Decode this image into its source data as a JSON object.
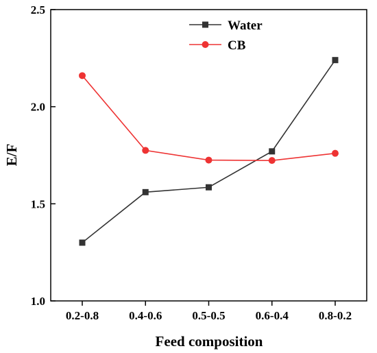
{
  "chart_data": {
    "type": "line",
    "xlabel": "Feed composition",
    "ylabel": "E/F",
    "categories": [
      "0.2-0.8",
      "0.4-0.6",
      "0.5-0.5",
      "0.6-0.4",
      "0.8-0.2"
    ],
    "ylim": [
      1.0,
      2.5
    ],
    "yticks": [
      "1.0",
      "1.5",
      "2.0",
      "2.5"
    ],
    "grid": false,
    "legend_position": "top-center",
    "series": [
      {
        "name": "Water",
        "color": "#333333",
        "marker": "square",
        "values": [
          1.3,
          1.56,
          1.585,
          1.77,
          2.24
        ]
      },
      {
        "name": "CB",
        "color": "#ee3333",
        "marker": "circle",
        "values": [
          2.16,
          1.775,
          1.725,
          1.723,
          1.76
        ]
      }
    ]
  }
}
